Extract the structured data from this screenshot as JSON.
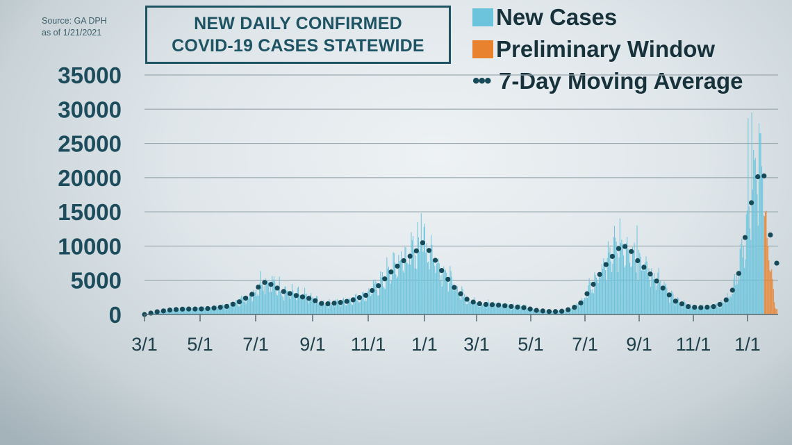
{
  "source": {
    "line1": "Source: GA DPH",
    "line2": "as of 1/21/2021"
  },
  "title": {
    "line1": "NEW DAILY CONFIRMED",
    "line2": "COVID-19 CASES STATEWIDE"
  },
  "legend": [
    {
      "label": "New Cases",
      "color": "#6bc4dc",
      "type": "bar"
    },
    {
      "label": "Preliminary Window",
      "color": "#e8822f",
      "type": "bar"
    },
    {
      "label": "7-Day Moving Average",
      "color": "#174a58",
      "type": "dots"
    }
  ],
  "chart_data": {
    "type": "bar",
    "title": "NEW DAILY CONFIRMED COVID-19 CASES STATEWIDE",
    "xlabel": "",
    "ylabel": "",
    "ylim": [
      0,
      35000
    ],
    "yticks": [
      0,
      5000,
      10000,
      15000,
      20000,
      25000,
      30000,
      35000
    ],
    "xticks": [
      "3/1",
      "5/1",
      "7/1",
      "9/1",
      "11/1",
      "1/1",
      "3/1",
      "5/1",
      "7/1",
      "9/1",
      "11/1",
      "1/1"
    ],
    "grid": true,
    "legend_position": "top-right",
    "series": [
      {
        "name": "7-Day Moving Average",
        "type": "dotted-line",
        "x_day": [
          0,
          14,
          31,
          45,
          61,
          75,
          92,
          106,
          122,
          130,
          140,
          153,
          167,
          184,
          198,
          214,
          228,
          245,
          259,
          275,
          290,
          300,
          306,
          316,
          331,
          345,
          359,
          373,
          390,
          404,
          420,
          434,
          451,
          465,
          481,
          495,
          512,
          526,
          535,
          545,
          556,
          573,
          587,
          603,
          617,
          634,
          648,
          658,
          664,
          670,
          676,
          680,
          684,
          688,
          692,
          696
        ],
        "values": [
          0,
          400,
          700,
          800,
          800,
          900,
          1200,
          1900,
          3200,
          4800,
          4400,
          3400,
          2800,
          2300,
          1500,
          1700,
          2000,
          2800,
          4200,
          6500,
          8200,
          9000,
          10800,
          9200,
          6000,
          3600,
          2000,
          1500,
          1400,
          1200,
          1000,
          600,
          400,
          500,
          1300,
          4000,
          7500,
          9800,
          10000,
          8000,
          6500,
          4000,
          2000,
          1100,
          1000,
          1200,
          2500,
          6000,
          10500,
          15000,
          19000,
          20500,
          21000,
          19500,
          13000,
          7500
        ]
      },
      {
        "name": "New Cases",
        "type": "bar",
        "note": "daily values fluctuate around moving average; peaks ~6000 (Jul), ~14800 (Jan), ~13000 (Aug), ~29500 (Jan)"
      },
      {
        "name": "Preliminary Window",
        "type": "bar",
        "x_day_range": [
          686,
          700
        ],
        "values_approx": [
          17000,
          15000,
          12000,
          9000,
          6000,
          4000,
          1500
        ]
      }
    ]
  }
}
